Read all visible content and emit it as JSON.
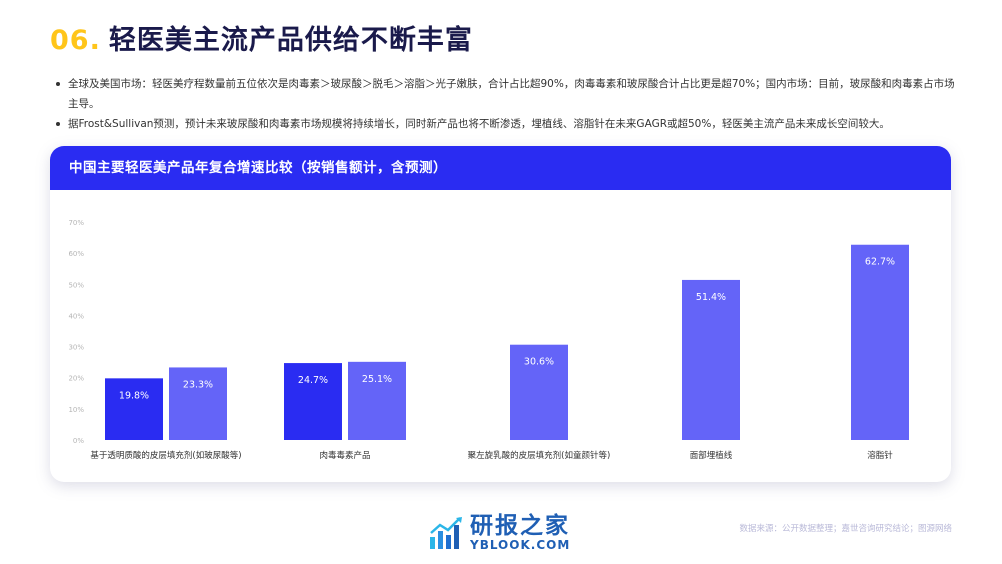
{
  "title": {
    "number": "06.",
    "text": "轻医美主流产品供给不断丰富"
  },
  "bullets": [
    "全球及美国市场：轻医美疗程数量前五位依次是肉毒素＞玻尿酸＞脱毛＞溶脂＞光子嫩肤，合计占比超90%，肉毒毒素和玻尿酸合计占比更是超70%；国内市场：目前，玻尿酸和肉毒素占市场主导。",
    "据Frost&Sullivan预测，预计未来玻尿酸和肉毒素市场规模将持续增长，同时新产品也将不断渗透，埋植线、溶脂针在未来GAGR或超50%，轻医美主流产品未来成长空间较大。"
  ],
  "card_title": "中国主要轻医美产品年复合增速比较（按销售额计，含预测）",
  "colors": {
    "dark_bar": "#2a2cf2",
    "light_bar": "#6464f8",
    "header": "#2a2cf2",
    "title_number": "#ffc51a"
  },
  "chart_data": {
    "type": "bar",
    "title": "中国主要轻医美产品年复合增速比较（按销售额计，含预测）",
    "xlabel": "",
    "ylabel": "",
    "ylim": [
      0,
      70
    ],
    "yticks": [
      "0%",
      "10%",
      "20%",
      "30%",
      "40%",
      "50%",
      "60%",
      "70%"
    ],
    "grid": false,
    "groups": [
      {
        "category": "基于透明质酸的皮层填充剂(如玻尿酸等)",
        "bars": [
          {
            "value": 19.8,
            "label": "19.8%",
            "tone": "dark"
          },
          {
            "value": 23.3,
            "label": "23.3%",
            "tone": "light"
          }
        ]
      },
      {
        "category": "肉毒毒素产品",
        "bars": [
          {
            "value": 24.7,
            "label": "24.7%",
            "tone": "dark"
          },
          {
            "value": 25.1,
            "label": "25.1%",
            "tone": "light"
          }
        ]
      },
      {
        "category": "聚左旋乳酸的皮层填充剂(如童颜针等)",
        "bars": [
          {
            "value": 30.6,
            "label": "30.6%",
            "tone": "light"
          }
        ]
      },
      {
        "category": "面部埋植线",
        "bars": [
          {
            "value": 51.4,
            "label": "51.4%",
            "tone": "light"
          }
        ]
      },
      {
        "category": "溶脂针",
        "bars": [
          {
            "value": 62.7,
            "label": "62.7%",
            "tone": "light"
          }
        ]
      }
    ]
  },
  "logo": {
    "cn": "研报之家",
    "en": "YBLOOK.COM"
  },
  "source": "数据来源：公开数据整理；嘉世咨询研究结论；图源网络"
}
